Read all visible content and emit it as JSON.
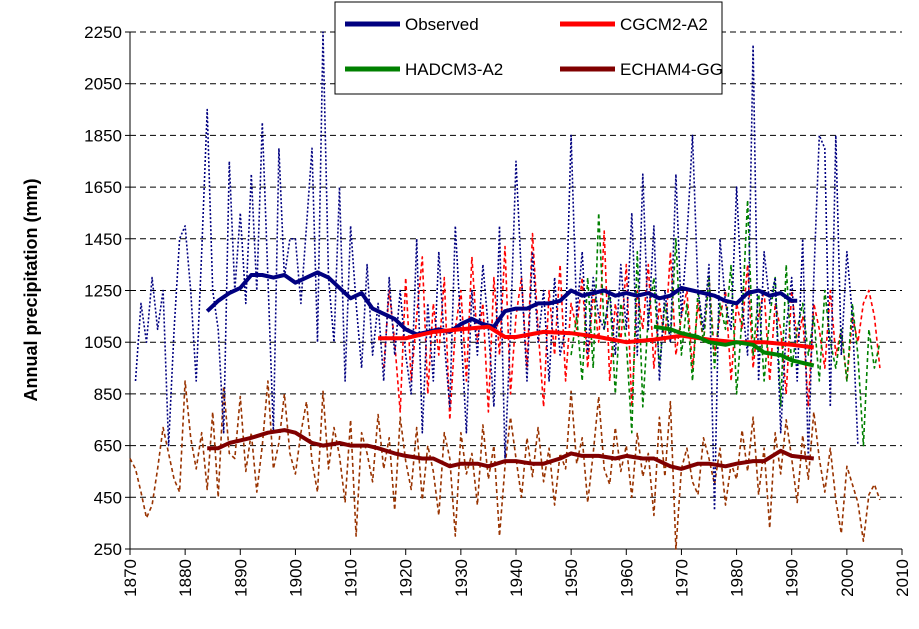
{
  "chart_data": {
    "type": "line",
    "y_label": "Annual precipitation (mm)",
    "xlim": [
      1870,
      2010
    ],
    "xticks": [
      1870,
      1880,
      1890,
      1900,
      1910,
      1920,
      1930,
      1940,
      1950,
      1960,
      1970,
      1980,
      1990,
      2000,
      2010
    ],
    "ylim": [
      250,
      2250
    ],
    "yticks": [
      250,
      450,
      650,
      850,
      1050,
      1250,
      1450,
      1650,
      1850,
      2050,
      2250
    ],
    "grid": true,
    "legend": "top",
    "series": [
      {
        "color": "#993300",
        "style": "dashed",
        "x": [
          1870,
          1871,
          1872,
          1873,
          1874,
          1875,
          1876,
          1877,
          1878,
          1879,
          1880,
          1881,
          1882,
          1883,
          1884,
          1885,
          1886,
          1887,
          1888,
          1889,
          1890,
          1891,
          1892,
          1893,
          1894,
          1895,
          1896,
          1897,
          1898,
          1899,
          1900,
          1901,
          1902,
          1903,
          1904,
          1905,
          1906,
          1907,
          1908,
          1909,
          1910,
          1911,
          1912,
          1913,
          1914,
          1915,
          1916,
          1917,
          1918,
          1919,
          1920,
          1921,
          1922,
          1923,
          1924,
          1925,
          1926,
          1927,
          1928,
          1929,
          1930,
          1931,
          1932,
          1933,
          1934,
          1935,
          1936,
          1937,
          1938,
          1939,
          1940,
          1941,
          1942,
          1943,
          1944,
          1945,
          1946,
          1947,
          1948,
          1949,
          1950,
          1951,
          1952,
          1953,
          1954,
          1955,
          1956,
          1957,
          1958,
          1959,
          1960,
          1961,
          1962,
          1963,
          1964,
          1965,
          1966,
          1967,
          1968,
          1969,
          1970,
          1971,
          1972,
          1973,
          1974,
          1975,
          1976,
          1977,
          1978,
          1979,
          1980,
          1981,
          1982,
          1983,
          1984,
          1985,
          1986,
          1987,
          1988,
          1989,
          1990,
          1991,
          1992,
          1993,
          1994,
          1995,
          1996,
          1997,
          1998,
          1999,
          2000,
          2001,
          2002,
          2003,
          2004,
          2005,
          2006
        ],
        "values": [
          600,
          560,
          470,
          370,
          420,
          560,
          720,
          620,
          520,
          470,
          900,
          680,
          560,
          700,
          480,
          780,
          450,
          880,
          620,
          600,
          840,
          550,
          700,
          470,
          650,
          900,
          560,
          660,
          850,
          620,
          540,
          700,
          820,
          590,
          470,
          860,
          560,
          720,
          610,
          430,
          750,
          300,
          700,
          620,
          510,
          770,
          560,
          680,
          400,
          760,
          590,
          480,
          720,
          440,
          650,
          550,
          380,
          700,
          600,
          300,
          700,
          540,
          620,
          420,
          730,
          520,
          650,
          300,
          570,
          760,
          600,
          450,
          680,
          530,
          720,
          510,
          640,
          420,
          620,
          560,
          860,
          580,
          680,
          430,
          620,
          840,
          560,
          500,
          720,
          550,
          650,
          450,
          700,
          530,
          620,
          380,
          760,
          530,
          820,
          250,
          560,
          640,
          510,
          460,
          680,
          600,
          500,
          640,
          420,
          580,
          520,
          710,
          550,
          760,
          460,
          640,
          330,
          700,
          540,
          750,
          600,
          430,
          690,
          520,
          780,
          600,
          470,
          640,
          440,
          310,
          570,
          500,
          430,
          280,
          460,
          500,
          440
        ]
      },
      {
        "color": "#ff0000",
        "style": "dashed",
        "x": [
          1916,
          1917,
          1918,
          1919,
          1920,
          1921,
          1922,
          1923,
          1924,
          1925,
          1926,
          1927,
          1928,
          1929,
          1930,
          1931,
          1932,
          1933,
          1934,
          1935,
          1936,
          1937,
          1938,
          1939,
          1940,
          1941,
          1942,
          1943,
          1944,
          1945,
          1946,
          1947,
          1948,
          1949,
          1950,
          1951,
          1952,
          1953,
          1954,
          1955,
          1956,
          1957,
          1958,
          1959,
          1960,
          1961,
          1962,
          1963,
          1964,
          1965,
          1966,
          1967,
          1968,
          1969,
          1970,
          1971,
          1972,
          1973,
          1974,
          1975,
          1976,
          1977,
          1978,
          1979,
          1980,
          1981,
          1982,
          1983,
          1984,
          1985,
          1986,
          1987,
          1988,
          1989,
          1990,
          1991,
          1992,
          1993,
          1994,
          1995,
          1996,
          1997,
          1998,
          1999,
          2000,
          2001,
          2002,
          2003,
          2004,
          2005,
          2006
        ],
        "values": [
          950,
          1250,
          1050,
          780,
          1300,
          900,
          1150,
          1380,
          850,
          1200,
          1000,
          1300,
          750,
          1100,
          1250,
          900,
          1380,
          1050,
          1200,
          780,
          1300,
          1000,
          1420,
          850,
          1150,
          1300,
          950,
          1470,
          1100,
          800,
          1250,
          1000,
          1350,
          900,
          1200,
          1100,
          1300,
          950,
          1250,
          1050,
          1480,
          900,
          1200,
          1050,
          1350,
          800,
          1250,
          1100,
          1350,
          950,
          1200,
          1050,
          1400,
          1000,
          1150,
          1250,
          950,
          1200,
          1050,
          1300,
          1000,
          1150,
          1250,
          900,
          1200,
          1100,
          1350,
          950,
          1150,
          1250,
          900,
          1200,
          1100,
          850,
          1250,
          1050,
          1150,
          800,
          1200,
          1100,
          950,
          1250,
          1000,
          1100,
          900,
          1150,
          1050,
          1200,
          1250,
          1150,
          950
        ]
      },
      {
        "color": "#008000",
        "style": "dashed",
        "x": [
          1950,
          1951,
          1952,
          1953,
          1954,
          1955,
          1956,
          1957,
          1958,
          1959,
          1960,
          1961,
          1962,
          1963,
          1964,
          1965,
          1966,
          1967,
          1968,
          1969,
          1970,
          1971,
          1972,
          1973,
          1974,
          1975,
          1976,
          1977,
          1978,
          1979,
          1980,
          1981,
          1982,
          1983,
          1984,
          1985,
          1986,
          1987,
          1988,
          1989,
          1990,
          1991,
          1992,
          1993,
          1994,
          1995,
          1996,
          1997,
          1998,
          1999,
          2000,
          2001,
          2002,
          2003,
          2004,
          2005,
          2006
        ],
        "values": [
          1000,
          1150,
          900,
          1300,
          950,
          1550,
          1100,
          1250,
          850,
          1200,
          1050,
          700,
          1400,
          800,
          1150,
          1300,
          950,
          1200,
          1050,
          1450,
          1000,
          1200,
          900,
          1250,
          1050,
          1300,
          950,
          1200,
          1100,
          1350,
          850,
          1150,
          1600,
          1000,
          1250,
          900,
          1150,
          1300,
          800,
          1350,
          950,
          1100,
          1200,
          1000,
          1150,
          900,
          1250,
          1050,
          950,
          1100,
          900,
          1200,
          1000,
          650,
          1100,
          950,
          1050
        ]
      },
      {
        "color": "#000080",
        "style": "dotted",
        "x": [
          1871,
          1872,
          1873,
          1874,
          1875,
          1876,
          1877,
          1878,
          1879,
          1880,
          1881,
          1882,
          1883,
          1884,
          1885,
          1886,
          1887,
          1888,
          1889,
          1890,
          1891,
          1892,
          1893,
          1894,
          1895,
          1896,
          1897,
          1898,
          1899,
          1900,
          1901,
          1902,
          1903,
          1904,
          1905,
          1906,
          1907,
          1908,
          1909,
          1910,
          1911,
          1912,
          1913,
          1914,
          1915,
          1916,
          1917,
          1918,
          1919,
          1920,
          1921,
          1922,
          1923,
          1924,
          1925,
          1926,
          1927,
          1928,
          1929,
          1930,
          1931,
          1932,
          1933,
          1934,
          1935,
          1936,
          1937,
          1938,
          1939,
          1940,
          1941,
          1942,
          1943,
          1944,
          1945,
          1946,
          1947,
          1948,
          1949,
          1950,
          1951,
          1952,
          1953,
          1954,
          1955,
          1956,
          1957,
          1958,
          1959,
          1960,
          1961,
          1962,
          1963,
          1964,
          1965,
          1966,
          1967,
          1968,
          1969,
          1970,
          1971,
          1972,
          1973,
          1974,
          1975,
          1976,
          1977,
          1978,
          1979,
          1980,
          1981,
          1982,
          1983,
          1984,
          1985,
          1986,
          1987,
          1988,
          1989,
          1990,
          1991,
          1992,
          1993,
          1994,
          1995,
          1996,
          1997,
          1998,
          1999,
          2000,
          2001,
          2002
        ],
        "values": [
          900,
          1200,
          1050,
          1300,
          1100,
          1250,
          650,
          1100,
          1450,
          1500,
          1250,
          900,
          1400,
          1950,
          1250,
          1100,
          700,
          1750,
          1250,
          1550,
          1200,
          1700,
          1250,
          1900,
          1300,
          700,
          1800,
          1300,
          1450,
          1450,
          1200,
          1500,
          1800,
          1050,
          2250,
          1300,
          1050,
          1650,
          900,
          1500,
          1200,
          950,
          1350,
          1000,
          1200,
          900,
          1300,
          1000,
          1250,
          1000,
          850,
          1450,
          700,
          1200,
          900,
          1400,
          1050,
          800,
          1500,
          1100,
          700,
          1250,
          1000,
          1350,
          1100,
          800,
          1500,
          600,
          1100,
          1750,
          1300,
          900,
          1400,
          1050,
          1250,
          900,
          1300,
          1000,
          1100,
          1850,
          1150,
          1400,
          1000,
          1300,
          1150,
          1100,
          1250,
          1000,
          1350,
          1100,
          1550,
          1000,
          1700,
          1100,
          1500,
          900,
          1250,
          1050,
          1700,
          1150,
          1450,
          1850,
          1250,
          1100,
          1350,
          400,
          1450,
          1200,
          1100,
          1650,
          1200,
          1000,
          2200,
          900,
          1400,
          1200,
          1300,
          700,
          1100,
          1300,
          900,
          1450,
          600,
          1300,
          1850,
          1800,
          800,
          1850,
          1000,
          1400,
          1150,
          650
        ]
      },
      {
        "name": "Observed",
        "color": "#000080",
        "style": "solid",
        "x": [
          1884,
          1886,
          1888,
          1890,
          1892,
          1894,
          1896,
          1898,
          1900,
          1902,
          1904,
          1906,
          1908,
          1910,
          1912,
          1914,
          1916,
          1918,
          1920,
          1922,
          1924,
          1926,
          1928,
          1930,
          1932,
          1934,
          1936,
          1938,
          1940,
          1942,
          1944,
          1946,
          1948,
          1950,
          1952,
          1954,
          1956,
          1958,
          1960,
          1962,
          1964,
          1966,
          1968,
          1970,
          1972,
          1974,
          1976,
          1978,
          1980,
          1982,
          1984,
          1986,
          1988,
          1990,
          1991
        ],
        "values": [
          1170,
          1210,
          1240,
          1260,
          1310,
          1310,
          1300,
          1310,
          1280,
          1300,
          1320,
          1300,
          1260,
          1220,
          1240,
          1180,
          1160,
          1140,
          1100,
          1080,
          1090,
          1100,
          1090,
          1120,
          1140,
          1120,
          1110,
          1170,
          1180,
          1180,
          1200,
          1200,
          1210,
          1250,
          1230,
          1240,
          1250,
          1230,
          1240,
          1230,
          1240,
          1220,
          1230,
          1260,
          1250,
          1240,
          1230,
          1210,
          1200,
          1240,
          1250,
          1230,
          1240,
          1210,
          1210
        ]
      },
      {
        "name": "CGCM2-A2",
        "color": "#ff0000",
        "style": "solid",
        "x": [
          1915,
          1920,
          1922,
          1925,
          1930,
          1935,
          1938,
          1940,
          1945,
          1950,
          1955,
          1960,
          1965,
          1970,
          1975,
          1980,
          1985,
          1990,
          1994
        ],
        "values": [
          1065,
          1065,
          1075,
          1090,
          1100,
          1110,
          1070,
          1070,
          1090,
          1085,
          1070,
          1050,
          1060,
          1075,
          1060,
          1050,
          1050,
          1040,
          1030
        ]
      },
      {
        "name": "HADCM3-A2",
        "color": "#008000",
        "style": "solid",
        "x": [
          1965,
          1968,
          1970,
          1973,
          1975,
          1978,
          1980,
          1983,
          1985,
          1988,
          1990,
          1994
        ],
        "values": [
          1110,
          1100,
          1085,
          1070,
          1050,
          1040,
          1050,
          1040,
          1010,
          1000,
          980,
          960
        ]
      },
      {
        "name": "ECHAM4-GG",
        "color": "#800000",
        "style": "solid",
        "x": [
          1884,
          1886,
          1888,
          1890,
          1892,
          1895,
          1898,
          1900,
          1903,
          1905,
          1908,
          1910,
          1913,
          1915,
          1918,
          1920,
          1923,
          1925,
          1928,
          1930,
          1933,
          1935,
          1938,
          1940,
          1943,
          1945,
          1948,
          1950,
          1952,
          1955,
          1958,
          1960,
          1963,
          1965,
          1968,
          1970,
          1973,
          1975,
          1978,
          1980,
          1983,
          1985,
          1988,
          1990,
          1994
        ],
        "values": [
          640,
          640,
          660,
          670,
          680,
          700,
          710,
          700,
          660,
          650,
          660,
          650,
          650,
          640,
          620,
          610,
          600,
          600,
          570,
          580,
          580,
          570,
          590,
          590,
          580,
          580,
          600,
          620,
          610,
          610,
          600,
          610,
          600,
          600,
          570,
          560,
          580,
          580,
          570,
          580,
          590,
          590,
          630,
          610,
          600
        ]
      }
    ]
  }
}
